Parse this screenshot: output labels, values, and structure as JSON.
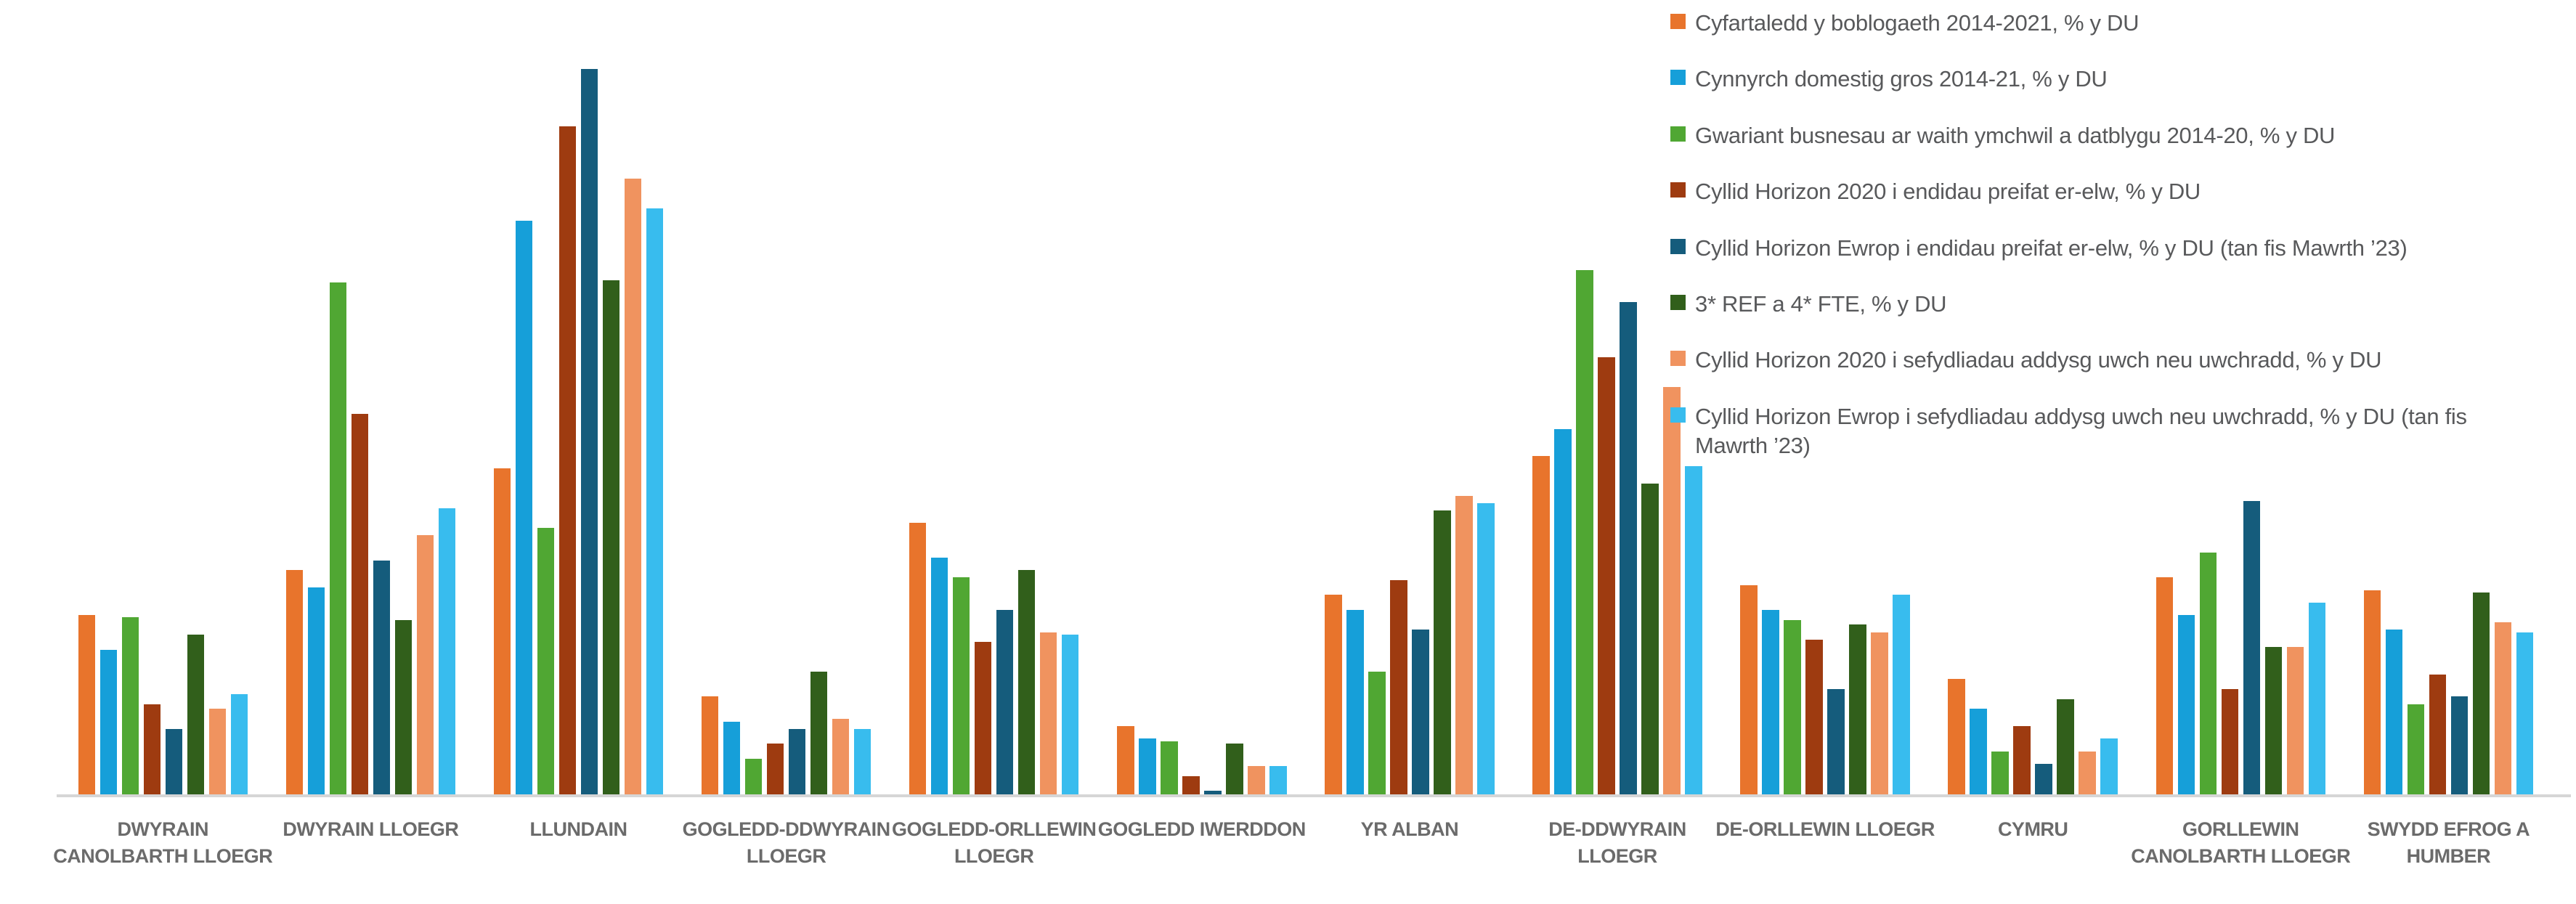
{
  "chart_data": {
    "type": "bar",
    "title": "",
    "xlabel": "",
    "ylabel": "% y DU",
    "ylim": [
      0,
      30
    ],
    "grid": false,
    "legend_position": "top-right",
    "categories": [
      "DWYRAIN CANOLBARTH LLOEGR",
      "DWYRAIN LLOEGR",
      "LLUNDAIN",
      "GOGLEDD-DDWYRAIN LLOEGR",
      "GOGLEDD-ORLLEWIN LLOEGR",
      "GOGLEDD IWERDDON",
      "YR ALBAN",
      "DE-DDWYRAIN LLOEGR",
      "DE-ORLLEWIN LLOEGR",
      "CYMRU",
      "GORLLEWIN CANOLBARTH LLOEGR",
      "SWYDD EFROG A HUMBER"
    ],
    "category_lines": [
      [
        "DWYRAIN",
        "CANOLBARTH LLOEGR"
      ],
      [
        "DWYRAIN LLOEGR"
      ],
      [
        "LLUNDAIN"
      ],
      [
        "GOGLEDD-DDWYRAIN",
        "LLOEGR"
      ],
      [
        "GOGLEDD-ORLLEWIN",
        "LLOEGR"
      ],
      [
        "GOGLEDD IWERDDON"
      ],
      [
        "YR ALBAN"
      ],
      [
        "DE-DDWYRAIN",
        "LLOEGR"
      ],
      [
        "DE-ORLLEWIN LLOEGR"
      ],
      [
        "CYMRU"
      ],
      [
        "GORLLEWIN",
        "CANOLBARTH LLOEGR"
      ],
      [
        "SWYDD EFROG A",
        "HUMBER"
      ]
    ],
    "series": [
      {
        "name": "Cyfartaledd y boblogaeth 2014-2021, % y DU",
        "color": "#e8742c",
        "values": [
          7.3,
          9.1,
          13.2,
          4.0,
          11.0,
          2.8,
          8.1,
          13.7,
          8.5,
          4.7,
          8.8,
          8.3
        ]
      },
      {
        "name": "Cynnyrch domestig gros 2014-21, % y DU",
        "color": "#169fd9",
        "values": [
          5.9,
          8.4,
          23.2,
          3.0,
          9.6,
          2.3,
          7.5,
          14.8,
          7.5,
          3.5,
          7.3,
          6.7
        ]
      },
      {
        "name": "Gwariant busnesau ar waith ymchwil a datblygu 2014-20, % y DU",
        "color": "#50a733",
        "values": [
          7.2,
          20.7,
          10.8,
          1.5,
          8.8,
          2.2,
          5.0,
          21.2,
          7.1,
          1.8,
          9.8,
          3.7
        ]
      },
      {
        "name": "Cyllid Horizon 2020 i endidau preifat er-elw, % y DU",
        "color": "#9e3b10",
        "values": [
          3.7,
          15.4,
          27.0,
          2.1,
          6.2,
          0.8,
          8.7,
          17.7,
          6.3,
          2.8,
          4.3,
          4.9
        ]
      },
      {
        "name": "Cyllid Horizon Ewrop i endidau preifat er-elw, % y DU (tan fis Mawrth ’23)",
        "color": "#155c7c",
        "values": [
          2.7,
          9.5,
          29.3,
          2.7,
          7.5,
          0.2,
          6.7,
          19.9,
          4.3,
          1.3,
          11.9,
          4.0
        ]
      },
      {
        "name": "3* REF a 4* FTE, % y DU",
        "color": "#315f1b",
        "values": [
          6.5,
          7.1,
          20.8,
          5.0,
          9.1,
          2.1,
          11.5,
          12.6,
          6.9,
          3.9,
          6.0,
          8.2
        ]
      },
      {
        "name": "Cyllid Horizon 2020 i sefydliadau addysg uwch neu uwchradd, % y DU",
        "color": "#f0935f",
        "values": [
          3.5,
          10.5,
          24.9,
          3.1,
          6.6,
          1.2,
          12.1,
          16.5,
          6.6,
          1.8,
          6.0,
          7.0
        ]
      },
      {
        "name": "Cyllid Horizon Ewrop i sefydliadau addysg uwch neu uwchradd, % y DU (tan fis Mawrth ’23)",
        "color": "#38bcee",
        "values": [
          4.1,
          11.6,
          23.7,
          2.7,
          6.5,
          1.2,
          11.8,
          13.3,
          8.1,
          2.3,
          7.8,
          6.6
        ]
      }
    ]
  }
}
